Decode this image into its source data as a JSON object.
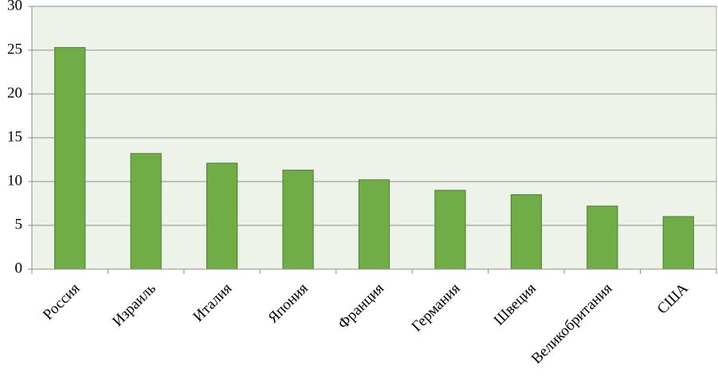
{
  "chart_data": {
    "type": "bar",
    "categories": [
      "Россия",
      "Израиль",
      "Италия",
      "Япония",
      "Франция",
      "Германия",
      "Швеция",
      "Великобритания",
      "США"
    ],
    "values": [
      25.3,
      13.2,
      12.1,
      11.3,
      10.2,
      9.0,
      8.5,
      7.2,
      6.0
    ],
    "color": "#70ad47",
    "ylim": [
      0,
      30
    ],
    "yticks": [
      0,
      5,
      10,
      15,
      20,
      25,
      30
    ],
    "grid": true
  }
}
